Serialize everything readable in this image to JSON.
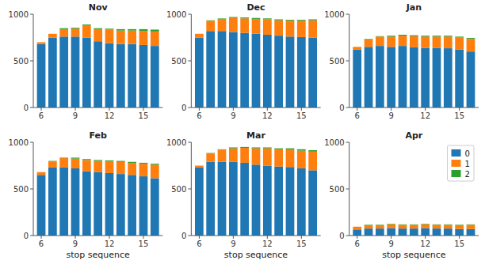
{
  "chart_data": [
    {
      "type": "bar",
      "title": "Nov",
      "stacked": true,
      "x": [
        6,
        7,
        8,
        9,
        10,
        11,
        12,
        13,
        14,
        15,
        16
      ],
      "xlim": [
        5.3,
        16.7
      ],
      "xticks": [
        6,
        9,
        12,
        15
      ],
      "ylim": [
        0,
        1000
      ],
      "yticks": [
        0,
        500,
        1000
      ],
      "series": [
        {
          "name": "0",
          "color": "#1f77b4",
          "values": [
            680,
            750,
            760,
            760,
            750,
            710,
            690,
            680,
            680,
            670,
            660
          ]
        },
        {
          "name": "1",
          "color": "#ff7f0e",
          "values": [
            20,
            40,
            80,
            85,
            130,
            130,
            145,
            145,
            145,
            150,
            155
          ]
        },
        {
          "name": "2",
          "color": "#2ca02c",
          "values": [
            0,
            0,
            10,
            10,
            10,
            10,
            10,
            15,
            15,
            20,
            20
          ]
        }
      ]
    },
    {
      "type": "bar",
      "title": "Dec",
      "stacked": true,
      "x": [
        6,
        7,
        8,
        9,
        10,
        11,
        12,
        13,
        14,
        15,
        16
      ],
      "xlim": [
        5.3,
        16.7
      ],
      "xticks": [
        6,
        9,
        12,
        15
      ],
      "ylim": [
        0,
        1000
      ],
      "yticks": [
        0,
        500,
        1000
      ],
      "series": [
        {
          "name": "0",
          "color": "#1f77b4",
          "values": [
            750,
            820,
            820,
            810,
            800,
            790,
            780,
            770,
            760,
            755,
            750
          ]
        },
        {
          "name": "1",
          "color": "#ff7f0e",
          "values": [
            40,
            110,
            130,
            150,
            155,
            160,
            165,
            165,
            170,
            175,
            185
          ]
        },
        {
          "name": "2",
          "color": "#2ca02c",
          "values": [
            0,
            5,
            5,
            10,
            10,
            10,
            10,
            10,
            10,
            10,
            10
          ]
        }
      ]
    },
    {
      "type": "bar",
      "title": "Jan",
      "stacked": true,
      "x": [
        6,
        7,
        8,
        9,
        10,
        11,
        12,
        13,
        14,
        15,
        16
      ],
      "xlim": [
        5.3,
        16.7
      ],
      "xticks": [
        6,
        9,
        12,
        15
      ],
      "ylim": [
        0,
        1000
      ],
      "yticks": [
        0,
        500,
        1000
      ],
      "series": [
        {
          "name": "0",
          "color": "#1f77b4",
          "values": [
            620,
            650,
            660,
            650,
            660,
            645,
            640,
            640,
            635,
            620,
            600
          ]
        },
        {
          "name": "1",
          "color": "#ff7f0e",
          "values": [
            30,
            80,
            100,
            110,
            110,
            120,
            120,
            120,
            125,
            130,
            135
          ]
        },
        {
          "name": "2",
          "color": "#2ca02c",
          "values": [
            0,
            5,
            5,
            10,
            10,
            10,
            10,
            10,
            10,
            10,
            10
          ]
        }
      ]
    },
    {
      "type": "bar",
      "title": "Feb",
      "stacked": true,
      "xlabel": "stop sequence",
      "x": [
        6,
        7,
        8,
        9,
        10,
        11,
        12,
        13,
        14,
        15,
        16
      ],
      "xlim": [
        5.3,
        16.7
      ],
      "xticks": [
        6,
        9,
        12,
        15
      ],
      "ylim": [
        0,
        1000
      ],
      "yticks": [
        0,
        500,
        1000
      ],
      "series": [
        {
          "name": "0",
          "color": "#1f77b4",
          "values": [
            650,
            730,
            730,
            720,
            690,
            680,
            670,
            660,
            650,
            635,
            615
          ]
        },
        {
          "name": "1",
          "color": "#ff7f0e",
          "values": [
            30,
            65,
            100,
            105,
            120,
            120,
            125,
            130,
            130,
            135,
            145
          ]
        },
        {
          "name": "2",
          "color": "#2ca02c",
          "values": [
            0,
            5,
            5,
            10,
            10,
            10,
            10,
            10,
            10,
            10,
            10
          ]
        }
      ]
    },
    {
      "type": "bar",
      "title": "Mar",
      "stacked": true,
      "xlabel": "stop sequence",
      "x": [
        6,
        7,
        8,
        9,
        10,
        11,
        12,
        13,
        14,
        15,
        16
      ],
      "xlim": [
        5.3,
        16.7
      ],
      "xticks": [
        6,
        9,
        12,
        15
      ],
      "ylim": [
        0,
        1000
      ],
      "yticks": [
        0,
        500,
        1000
      ],
      "series": [
        {
          "name": "0",
          "color": "#1f77b4",
          "values": [
            730,
            790,
            790,
            790,
            780,
            760,
            750,
            740,
            735,
            720,
            700
          ]
        },
        {
          "name": "1",
          "color": "#ff7f0e",
          "values": [
            20,
            90,
            130,
            145,
            160,
            175,
            185,
            185,
            185,
            190,
            200
          ]
        },
        {
          "name": "2",
          "color": "#2ca02c",
          "values": [
            0,
            5,
            5,
            10,
            10,
            10,
            10,
            10,
            15,
            15,
            15
          ]
        }
      ]
    },
    {
      "type": "bar",
      "title": "Apr",
      "stacked": true,
      "xlabel": "stop sequence",
      "legend": "upper right",
      "x": [
        6,
        7,
        8,
        9,
        10,
        11,
        12,
        13,
        14,
        15,
        16
      ],
      "xlim": [
        5.3,
        16.7
      ],
      "xticks": [
        6,
        9,
        12,
        15
      ],
      "ylim": [
        0,
        1000
      ],
      "yticks": [
        0,
        500,
        1000
      ],
      "series": [
        {
          "name": "0",
          "color": "#1f77b4",
          "values": [
            65,
            75,
            75,
            80,
            75,
            75,
            80,
            75,
            75,
            70,
            70
          ]
        },
        {
          "name": "1",
          "color": "#ff7f0e",
          "values": [
            30,
            35,
            35,
            40,
            40,
            40,
            40,
            40,
            40,
            40,
            45
          ]
        },
        {
          "name": "2",
          "color": "#2ca02c",
          "values": [
            0,
            5,
            5,
            5,
            5,
            5,
            5,
            5,
            5,
            5,
            5
          ]
        }
      ]
    }
  ]
}
